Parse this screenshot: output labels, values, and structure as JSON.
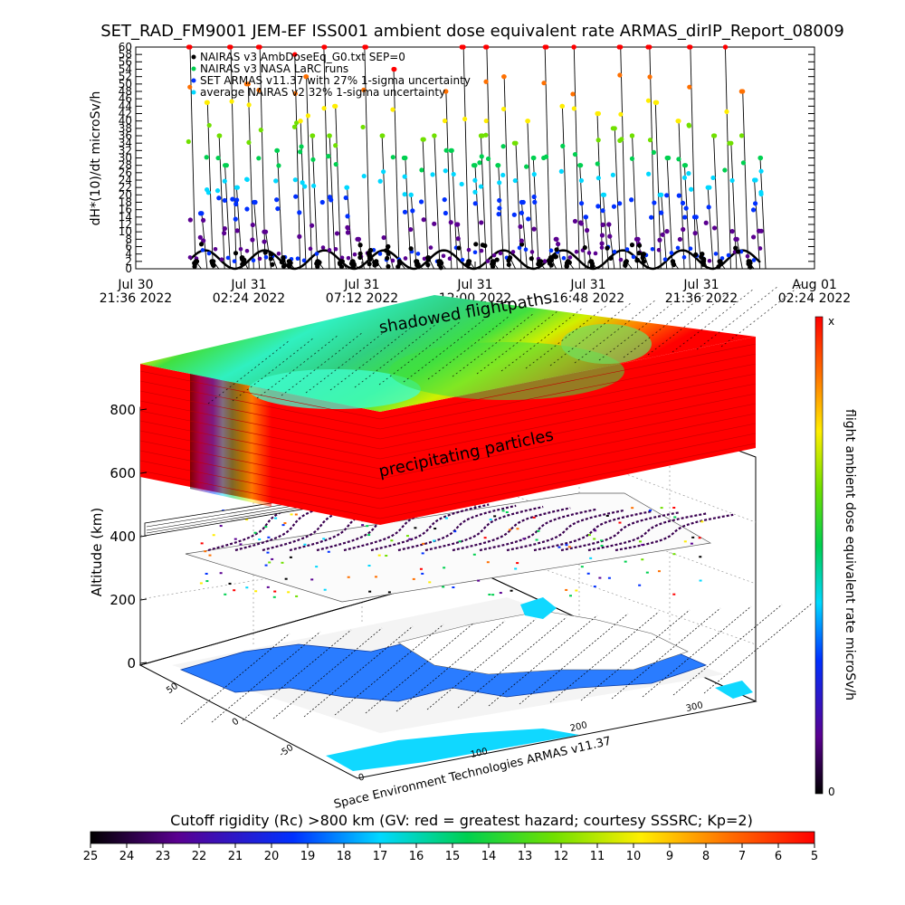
{
  "title": "SET_RAD_FM9001  JEM-EF ISS001 ambient dose equivalent rate ARMAS_dirIP_Report_08009",
  "chart_data": [
    {
      "type": "scatter",
      "ylabel": "dH*(10)/dt microSv/h",
      "ylim": [
        0,
        60
      ],
      "y_ticks": [
        "0",
        "2",
        "4",
        "6",
        "8",
        "10",
        "12",
        "14",
        "16",
        "18",
        "20",
        "22",
        "24",
        "26",
        "28",
        "30",
        "32",
        "34",
        "36",
        "38",
        "40",
        "42",
        "44",
        "46",
        "48",
        "50",
        "52",
        "54",
        "56",
        "58",
        "60"
      ],
      "x_ticks": [
        {
          "l1": "Jul 30",
          "l2": "21:36 2022"
        },
        {
          "l1": "Jul 31",
          "l2": "02:24 2022"
        },
        {
          "l1": "Jul 31",
          "l2": "07:12 2022"
        },
        {
          "l1": "Jul 31",
          "l2": "12:00 2022"
        },
        {
          "l1": "Jul 31",
          "l2": "16:48 2022"
        },
        {
          "l1": "Jul 31",
          "l2": "21:36 2022"
        },
        {
          "l1": "Aug 01",
          "l2": "02:24 2022"
        }
      ],
      "legend": [
        "NAIRAS v3 AmbDoseEq_G0.txt SEP=0",
        "NAIRAS v3 NASA LaRC runs",
        "SET ARMAS v11.37 with 27% 1-sigma uncertainty",
        "average NAIRAS v2 32% 1-sigma uncertainty"
      ],
      "legend_placement": "top-left",
      "series_values": [
        60,
        2,
        15,
        45,
        2,
        36,
        28,
        60,
        22,
        3,
        50,
        18,
        60,
        10,
        4,
        32,
        3,
        2,
        58,
        40,
        52,
        36,
        2,
        60,
        36,
        44,
        2,
        22,
        2,
        8,
        60,
        5,
        2,
        36,
        6,
        54,
        2,
        30,
        20,
        2,
        35,
        3,
        36,
        2,
        48,
        32,
        12,
        60,
        2,
        28,
        36,
        60,
        2,
        28,
        52,
        3,
        34,
        18,
        40,
        30,
        2,
        60,
        3,
        8,
        44,
        2,
        60,
        28,
        14,
        2,
        42,
        20,
        12,
        38,
        60,
        2,
        36,
        8,
        4,
        60,
        45,
        20,
        30,
        2,
        40,
        28,
        60,
        14,
        4,
        22,
        36,
        2,
        60,
        34,
        8,
        48,
        2,
        24,
        30
      ]
    },
    {
      "type": "surface3d",
      "ylabel": "Altitude (km)",
      "z_ticks": [
        "0",
        "200",
        "400",
        "600",
        "800"
      ],
      "lat_ticks": [
        "50",
        "0",
        "-50"
      ],
      "lon_ticks": [
        "0",
        "100",
        "200",
        "300"
      ],
      "annotations": [
        "shadowed flightpaths",
        "precipitating particles",
        "Space Environment Technologies ARMAS v11.37"
      ],
      "colorbar_label": "flight ambient dose equivalent rate microSv/h",
      "colorbar_top": "x",
      "colorbar_bottom": "0"
    },
    {
      "type": "colorbar",
      "title": "Cutoff rigidity (Rc) >800 km (GV: red = greatest hazard; courtesy SSSRC; Kp=2)",
      "ticks": [
        "25",
        "24",
        "23",
        "22",
        "21",
        "20",
        "19",
        "18",
        "17",
        "16",
        "15",
        "14",
        "13",
        "12",
        "11",
        "10",
        "9",
        "8",
        "7",
        "6",
        "5"
      ]
    }
  ]
}
